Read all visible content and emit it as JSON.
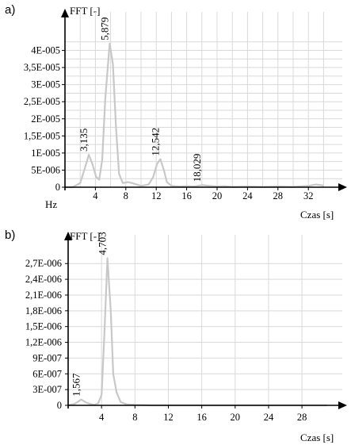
{
  "chart_data": [
    {
      "panel_label": "a)",
      "type": "line",
      "ylabel": "FFT [-]",
      "x_unit_label": "Hz",
      "xlabel": "Czas [s]",
      "xlim": [
        0,
        35
      ],
      "ylim": [
        0,
        4.5e-05
      ],
      "x_ticks": [
        4,
        8,
        12,
        16,
        20,
        24,
        28,
        32
      ],
      "x_tick_labels": [
        "4",
        "8",
        "12",
        "16",
        "20",
        "24",
        "28",
        "32"
      ],
      "y_ticks": [
        0,
        5e-06,
        1e-05,
        1.5e-05,
        2e-05,
        2.5e-05,
        3e-05,
        3.5e-05,
        4e-05
      ],
      "y_tick_labels": [
        "0",
        "5E-006",
        "1E-005",
        "1,5E-005",
        "2E-005",
        "2,5E-005",
        "3E-005",
        "3,5E-005",
        "4E-005"
      ],
      "x_gridlines": [
        2,
        4,
        6,
        8,
        10,
        12,
        14,
        16,
        18,
        20,
        22,
        24,
        26,
        28,
        30,
        32,
        34
      ],
      "y_gridlines": [
        2.5e-06,
        5e-06,
        7.5e-06,
        1e-05,
        1.25e-05,
        1.5e-05,
        1.75e-05,
        2e-05,
        2.25e-05,
        2.5e-05,
        2.75e-05,
        3e-05,
        3.25e-05,
        3.5e-05,
        3.75e-05,
        4e-05,
        4.25e-05
      ],
      "grid": true,
      "series": [
        {
          "x": [
            0,
            1,
            2,
            2.6,
            3.135,
            3.6,
            4.1,
            4.5,
            4.9,
            5.3,
            5.879,
            6.3,
            6.7,
            7.1,
            7.6,
            8.3,
            9,
            10,
            11,
            11.6,
            12.1,
            12.542,
            13,
            13.4,
            14,
            15,
            16,
            17,
            18.029,
            19,
            20,
            21,
            22,
            24,
            26,
            28,
            30,
            32,
            33,
            34
          ],
          "y": [
            0,
            0,
            1.2e-06,
            5.5e-06,
            9.5e-06,
            6.8e-06,
            3e-06,
            2.2e-06,
            8e-06,
            2.6e-05,
            4.2e-05,
            3.6e-05,
            1.8e-05,
            4e-06,
            1.2e-06,
            1.5e-06,
            1.1e-06,
            4e-07,
            8e-07,
            3e-06,
            6.8e-06,
            8.2e-06,
            5e-06,
            1.5e-06,
            4e-07,
            2e-07,
            3e-07,
            2e-07,
            6e-07,
            4e-07,
            2e-07,
            3e-07,
            1e-07,
            2e-07,
            1e-07,
            2e-07,
            1e-07,
            4e-07,
            8e-07,
            5e-07
          ]
        }
      ],
      "annotations": [
        {
          "text": "3,135",
          "x": 3.135,
          "y": 9.5e-06
        },
        {
          "text": "5,879",
          "x": 5.879,
          "y": 4.2e-05
        },
        {
          "text": "12,542",
          "x": 12.542,
          "y": 8.2e-06
        },
        {
          "text": "18,029",
          "x": 18.029,
          "y": 6e-07
        }
      ]
    },
    {
      "panel_label": "b)",
      "type": "line",
      "ylabel": "FFT [-]",
      "xlabel": "Czas [s]",
      "xlim": [
        0,
        31.5
      ],
      "ylim": [
        0,
        2.9e-06
      ],
      "x_ticks": [
        4,
        8,
        12,
        16,
        20,
        24,
        28
      ],
      "x_tick_labels": [
        "4",
        "8",
        "12",
        "16",
        "20",
        "24",
        "28"
      ],
      "y_ticks": [
        0,
        3e-07,
        6e-07,
        9e-07,
        1.2e-06,
        1.5e-06,
        1.8e-06,
        2.1e-06,
        2.4e-06,
        2.7e-06
      ],
      "y_tick_labels": [
        "0",
        "3E-007",
        "6E-007",
        "9E-007",
        "1,2E-006",
        "1,5E-006",
        "1,8E-006",
        "2,1E-006",
        "2,4E-006",
        "2,7E-006"
      ],
      "x_gridlines": [
        4,
        8,
        12,
        16,
        20,
        24,
        28
      ],
      "y_gridlines": [
        3e-07,
        6e-07,
        9e-07,
        1.2e-06,
        1.5e-06,
        1.8e-06,
        2.1e-06,
        2.4e-06,
        2.7e-06
      ],
      "grid": true,
      "series": [
        {
          "x": [
            0,
            0.8,
            1.567,
            2.2,
            2.8,
            3.2,
            3.6,
            4.0,
            4.3,
            4.703,
            5.1,
            5.4,
            5.8,
            6.3,
            7,
            8,
            10,
            14,
            20,
            26,
            31
          ],
          "y": [
            0,
            3e-08,
            1.1e-07,
            5e-08,
            2e-08,
            1e-08,
            4e-08,
            2e-07,
            1.2e-06,
            2.8e-06,
            1.8e-06,
            6e-07,
            2.5e-07,
            6e-08,
            2e-08,
            1e-08,
            0,
            0,
            0,
            0,
            0
          ]
        }
      ],
      "annotations": [
        {
          "text": "1,567",
          "x": 1.567,
          "y": 1.1e-07
        },
        {
          "text": "4,703",
          "x": 4.703,
          "y": 2.8e-06
        }
      ]
    }
  ]
}
